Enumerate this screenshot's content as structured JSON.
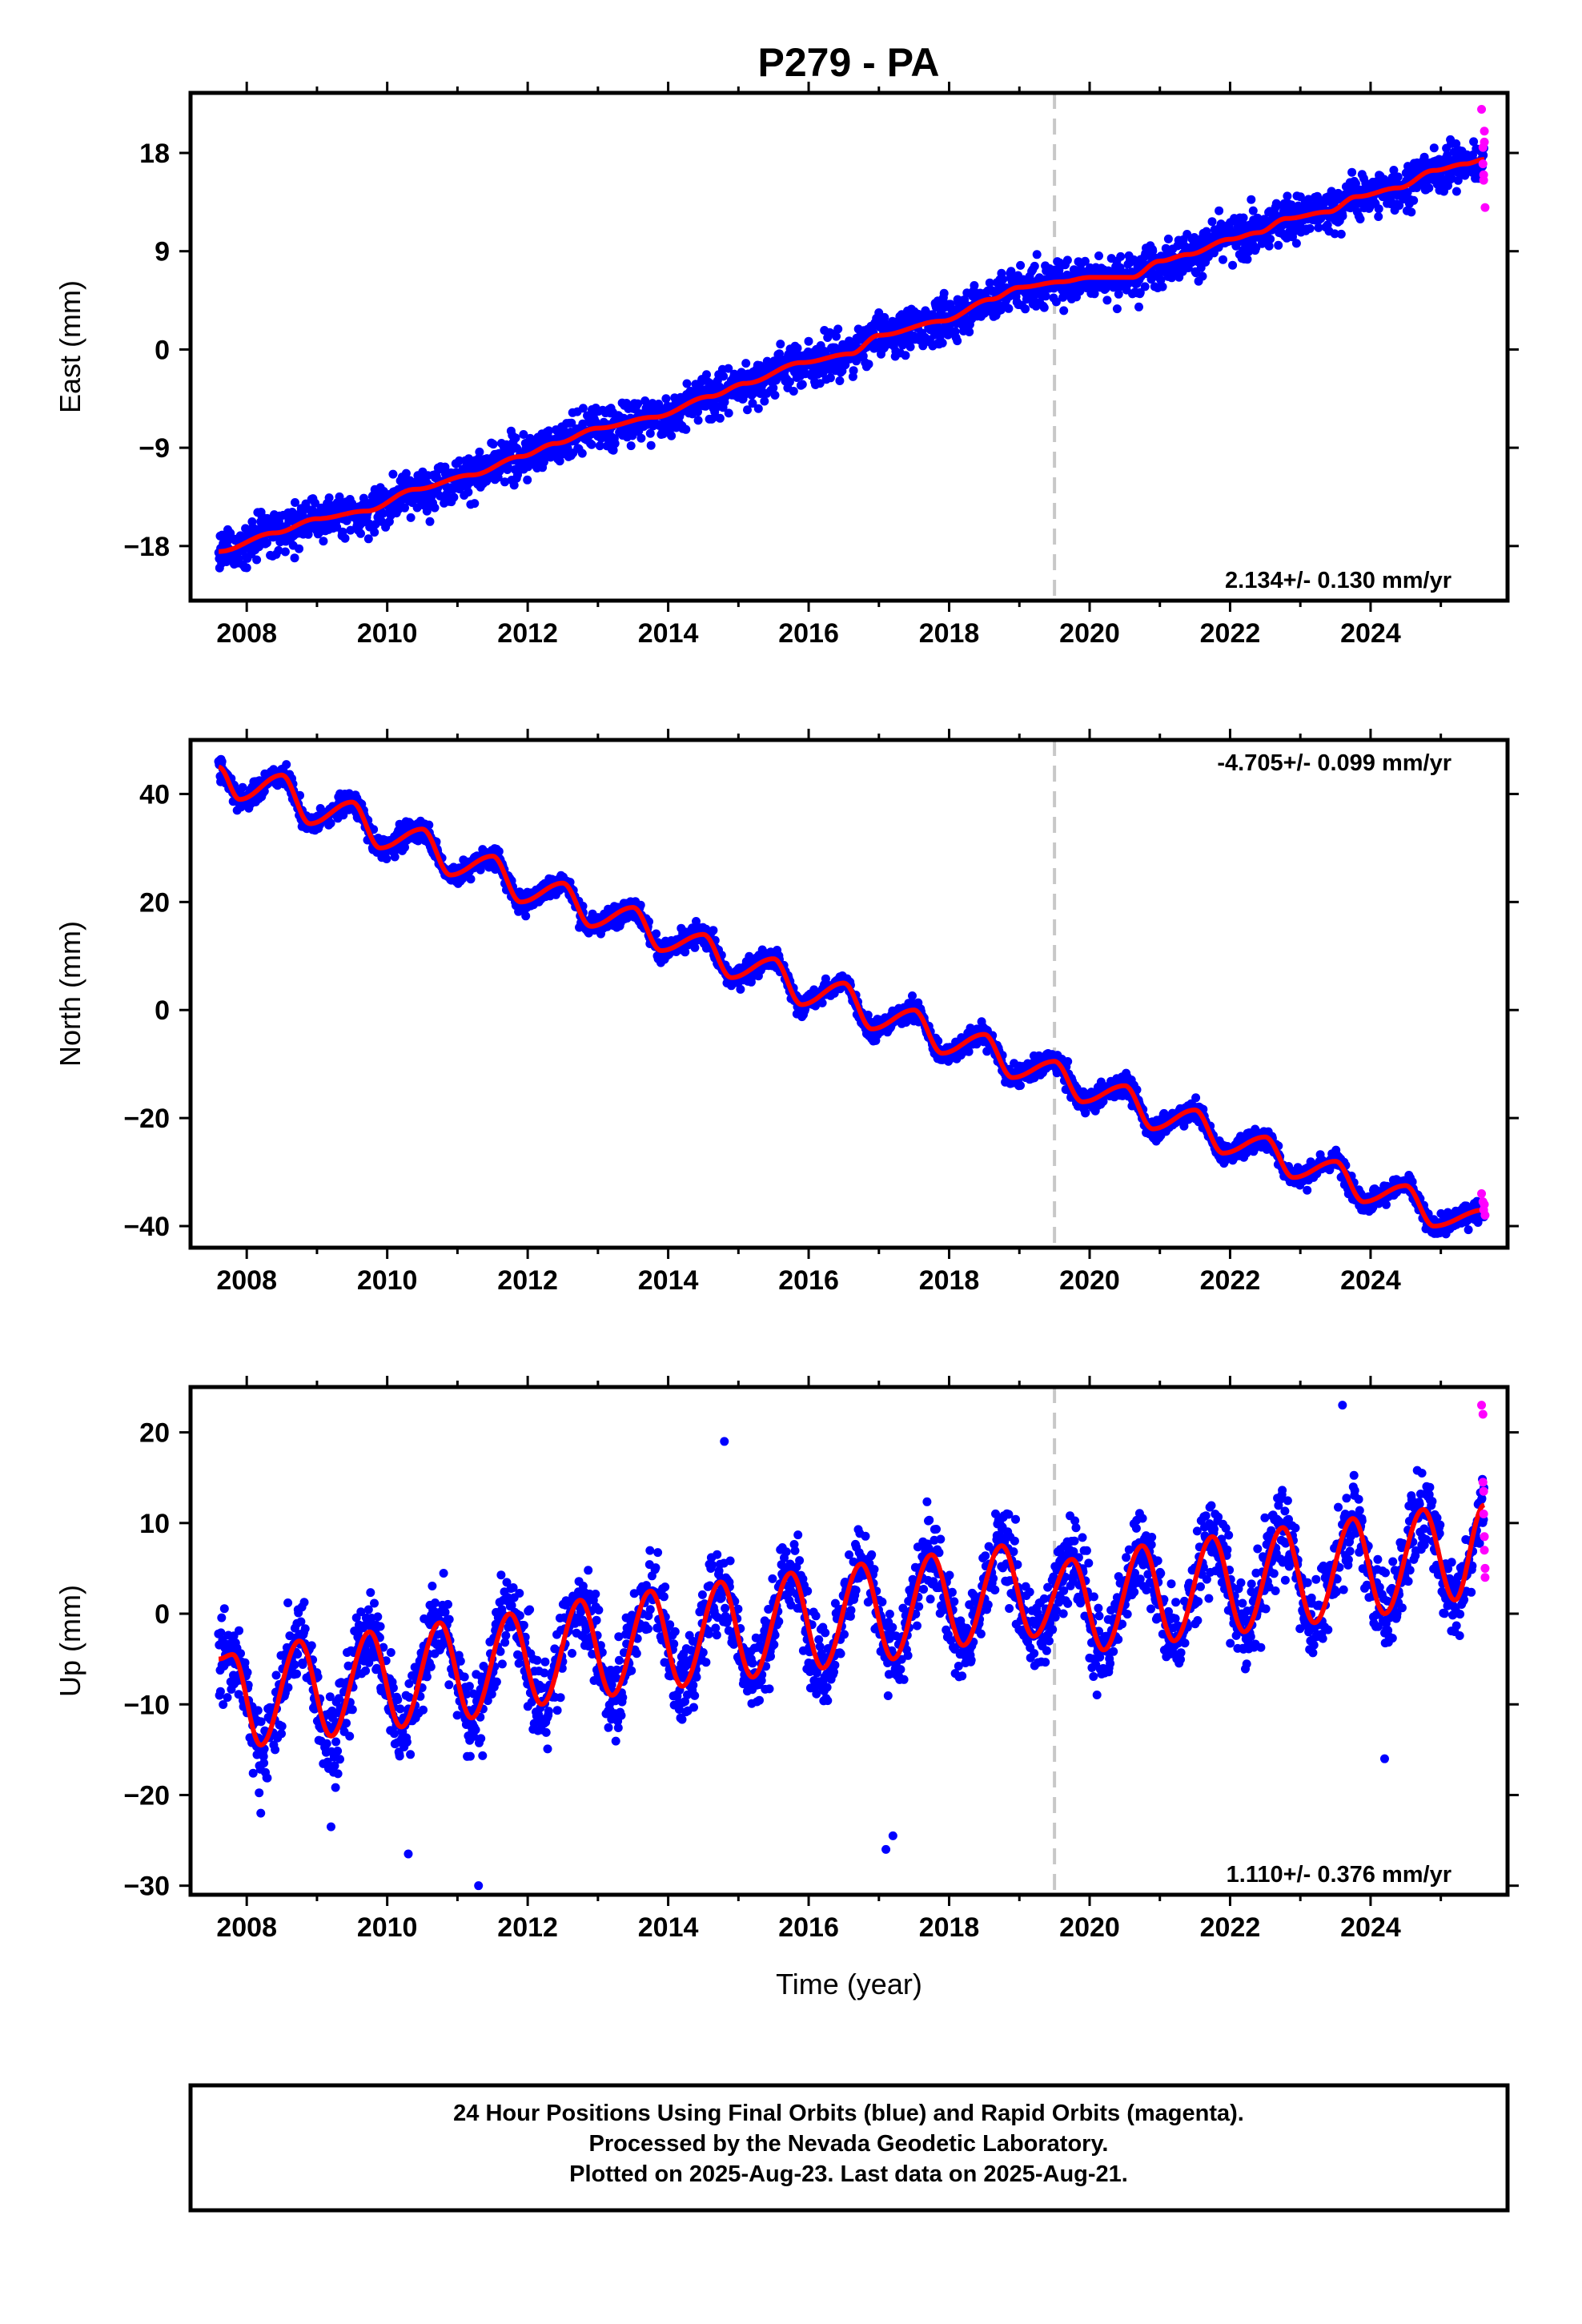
{
  "title": "P279 - PA",
  "footer": {
    "lines": [
      "24 Hour Positions Using Final Orbits (blue) and Rapid Orbits (magenta).",
      "Processed by the Nevada Geodetic Laboratory.",
      "Plotted on 2025-Aug-23. Last data on 2025-Aug-21."
    ]
  },
  "colors": {
    "final_orbits": "#0000ff",
    "rapid_orbits": "#ff00ff",
    "model_fit": "#ff0000",
    "event_line": "#c8c8c8"
  },
  "chart_data": [
    {
      "type": "scatter",
      "panel": "east",
      "ylabel": "East (mm)",
      "xlim": [
        2007.2,
        2025.95
      ],
      "ylim": [
        -23,
        23.5
      ],
      "yticks": [
        -18,
        -9,
        0,
        9,
        18
      ],
      "yticklabels": [
        "−18",
        "−9",
        "0",
        "9",
        "18"
      ],
      "xticks": [
        2008,
        2010,
        2012,
        2014,
        2016,
        2018,
        2020,
        2022,
        2024
      ],
      "xticklabels": [
        "2008",
        "2010",
        "2012",
        "2014",
        "2016",
        "2018",
        "2020",
        "2022",
        "2024"
      ],
      "rate_label": "2.134+/- 0.130 mm/yr",
      "rate_position": "bottom-right",
      "event_line_x": 2019.5,
      "series": [
        {
          "kind": "model-fit",
          "x": [
            2007.6,
            2008.4,
            2009.0,
            2009.7,
            2010.4,
            2011.2,
            2011.9,
            2012.4,
            2013.0,
            2013.8,
            2014.6,
            2015.1,
            2015.9,
            2016.6,
            2017.0,
            2017.9,
            2018.6,
            2019.0,
            2019.6,
            2020.0,
            2020.6,
            2021.0,
            2021.4,
            2022.0,
            2022.4,
            2022.8,
            2023.4,
            2023.8,
            2024.4,
            2024.9,
            2025.35,
            2025.62
          ],
          "y": [
            -18.5,
            -16.8,
            -15.5,
            -14.8,
            -12.8,
            -11.5,
            -9.8,
            -8.6,
            -7.2,
            -6.2,
            -4.3,
            -3.1,
            -1.2,
            -0.4,
            1.3,
            2.6,
            4.6,
            5.7,
            6.2,
            6.6,
            6.6,
            8.1,
            8.7,
            10.1,
            10.7,
            12.0,
            12.6,
            14.0,
            14.8,
            16.4,
            17.0,
            17.4
          ]
        },
        {
          "kind": "rapid-orbits",
          "x": [
            2025.58,
            2025.6,
            2025.6,
            2025.61,
            2025.61,
            2025.62,
            2025.62,
            2025.63
          ],
          "y": [
            22.0,
            18.5,
            17.0,
            16.0,
            15.5,
            20.0,
            19.0,
            13.0
          ]
        }
      ]
    },
    {
      "type": "scatter",
      "panel": "north",
      "ylabel": "North (mm)",
      "xlim": [
        2007.2,
        2025.95
      ],
      "ylim": [
        -44,
        50
      ],
      "yticks": [
        -40,
        -20,
        0,
        20,
        40
      ],
      "yticklabels": [
        "−40",
        "−20",
        "0",
        "20",
        "40"
      ],
      "xticks": [
        2008,
        2010,
        2012,
        2014,
        2016,
        2018,
        2020,
        2022,
        2024
      ],
      "xticklabels": [
        "2008",
        "2010",
        "2012",
        "2014",
        "2016",
        "2018",
        "2020",
        "2022",
        "2024"
      ],
      "rate_label": "-4.705+/- 0.099 mm/yr",
      "rate_position": "top-right",
      "event_line_x": 2019.5,
      "series": [
        {
          "kind": "model-fit",
          "x": [
            2007.6,
            2007.9,
            2008.5,
            2008.9,
            2009.5,
            2009.9,
            2010.5,
            2010.9,
            2011.5,
            2011.9,
            2012.5,
            2012.9,
            2013.5,
            2013.9,
            2014.5,
            2014.9,
            2015.5,
            2015.9,
            2016.5,
            2016.9,
            2017.5,
            2017.9,
            2018.5,
            2018.9,
            2019.5,
            2019.9,
            2020.5,
            2020.9,
            2021.5,
            2021.9,
            2022.5,
            2022.9,
            2023.5,
            2023.9,
            2024.5,
            2024.9,
            2025.62
          ],
          "y": [
            45.0,
            39.0,
            43.5,
            34.5,
            38.5,
            30.0,
            33.5,
            25.0,
            28.5,
            20.0,
            23.5,
            15.5,
            19.0,
            11.0,
            14.0,
            6.0,
            9.5,
            1.0,
            5.0,
            -3.5,
            0.0,
            -8.0,
            -4.5,
            -12.5,
            -9.5,
            -17.0,
            -14.0,
            -22.0,
            -18.5,
            -26.5,
            -23.5,
            -31.0,
            -28.0,
            -35.5,
            -32.5,
            -40.0,
            -37.0
          ]
        },
        {
          "kind": "rapid-orbits",
          "x": [
            2025.58,
            2025.6,
            2025.61,
            2025.62,
            2025.63
          ],
          "y": [
            -34.0,
            -35.5,
            -37.0,
            -36.0,
            -38.0
          ]
        }
      ]
    },
    {
      "type": "scatter",
      "panel": "up",
      "ylabel": "Up (mm)",
      "xlabel": "Time (year)",
      "xlim": [
        2007.2,
        2025.95
      ],
      "ylim": [
        -31,
        25
      ],
      "yticks": [
        -30,
        -20,
        -10,
        0,
        10,
        20
      ],
      "yticklabels": [
        "−30",
        "−20",
        "−10",
        "0",
        "10",
        "20"
      ],
      "xticks": [
        2008,
        2010,
        2012,
        2014,
        2016,
        2018,
        2020,
        2022,
        2024
      ],
      "xticklabels": [
        "2008",
        "2010",
        "2012",
        "2014",
        "2016",
        "2018",
        "2020",
        "2022",
        "2024"
      ],
      "rate_label": "1.110+/- 0.376 mm/yr",
      "rate_position": "bottom-right",
      "event_line_x": 2019.5,
      "series": [
        {
          "kind": "model-fit",
          "x": [
            2007.6,
            2007.8,
            2008.2,
            2008.75,
            2009.2,
            2009.75,
            2010.2,
            2010.75,
            2011.2,
            2011.75,
            2012.2,
            2012.75,
            2013.2,
            2013.75,
            2014.2,
            2014.75,
            2015.2,
            2015.75,
            2016.2,
            2016.75,
            2017.2,
            2017.75,
            2018.2,
            2018.75,
            2019.2,
            2019.75,
            2020.2,
            2020.75,
            2021.2,
            2021.75,
            2022.2,
            2022.75,
            2023.2,
            2023.75,
            2024.2,
            2024.75,
            2025.2,
            2025.62
          ],
          "y": [
            -5.0,
            -4.5,
            -14.5,
            -3.0,
            -13.5,
            -2.0,
            -12.5,
            -1.0,
            -11.5,
            0.0,
            -10.0,
            1.5,
            -9.0,
            2.5,
            -8.0,
            3.5,
            -7.0,
            4.5,
            -6.0,
            5.5,
            -5.0,
            6.5,
            -3.5,
            7.5,
            -2.5,
            6.0,
            -4.0,
            7.5,
            -3.0,
            8.5,
            -2.0,
            9.5,
            -1.0,
            10.5,
            0.0,
            11.5,
            1.5,
            12.0
          ]
        },
        {
          "kind": "rapid-orbits",
          "x": [
            2025.58,
            2025.6,
            2025.6,
            2025.61,
            2025.61,
            2025.62,
            2025.62,
            2025.63,
            2025.63
          ],
          "y": [
            23.0,
            22.0,
            14.5,
            13.5,
            11.0,
            8.5,
            7.0,
            5.0,
            4.0
          ]
        },
        {
          "kind": "outliers",
          "x": [
            2008.2,
            2009.2,
            2010.3,
            2011.3,
            2014.8,
            2017.1,
            2017.2,
            2023.6,
            2024.2
          ],
          "y": [
            -22.0,
            -23.5,
            -26.5,
            -30.0,
            19.0,
            -26.0,
            -24.5,
            23.0,
            -16.0
          ]
        }
      ]
    }
  ]
}
